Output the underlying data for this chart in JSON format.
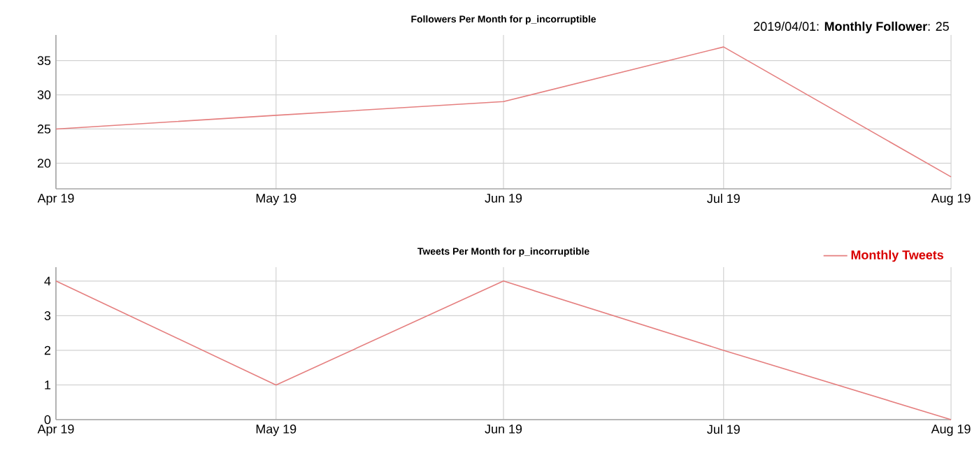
{
  "chart_data": [
    {
      "type": "line",
      "title": "Followers Per Month for p_incorruptible",
      "x": [
        "2019-04-01",
        "2019-05-01",
        "2019-06-01",
        "2019-07-01",
        "2019-08-01"
      ],
      "xlim": [
        "2019-04-01",
        "2019-08-01"
      ],
      "xticks": [
        {
          "value": "2019-04-01",
          "label": "Apr 19"
        },
        {
          "value": "2019-05-01",
          "label": "May 19"
        },
        {
          "value": "2019-06-01",
          "label": "Jun 19"
        },
        {
          "value": "2019-07-01",
          "label": "Jul 19"
        },
        {
          "value": "2019-08-01",
          "label": "Aug 19"
        }
      ],
      "ylim": [
        16.25,
        38.75
      ],
      "yticks": [
        20,
        25,
        30,
        35
      ],
      "series": [
        {
          "color": "#e57f7f",
          "values": [
            25,
            27,
            29,
            37,
            18
          ]
        }
      ],
      "annotations": [
        "2019/04/01: **Monthly Follower**: 25"
      ],
      "grid": true
    },
    {
      "type": "line",
      "title": "Tweets Per Month for p_incorruptible",
      "x": [
        "2019-04-01",
        "2019-05-01",
        "2019-06-01",
        "2019-07-01",
        "2019-08-01"
      ],
      "xlim": [
        "2019-04-01",
        "2019-08-01"
      ],
      "xticks": [
        {
          "value": "2019-04-01",
          "label": "Apr 19"
        },
        {
          "value": "2019-05-01",
          "label": "May 19"
        },
        {
          "value": "2019-06-01",
          "label": "Jun 19"
        },
        {
          "value": "2019-07-01",
          "label": "Jul 19"
        },
        {
          "value": "2019-08-01",
          "label": "Aug 19"
        }
      ],
      "ylim": [
        0,
        4.4
      ],
      "yticks": [
        0,
        1,
        2,
        3,
        4
      ],
      "series": [
        {
          "name": "Monthly Tweets",
          "color": "#e57f7f",
          "values": [
            4,
            1,
            4,
            2,
            0
          ]
        }
      ],
      "grid": true,
      "legend": "top right"
    }
  ]
}
